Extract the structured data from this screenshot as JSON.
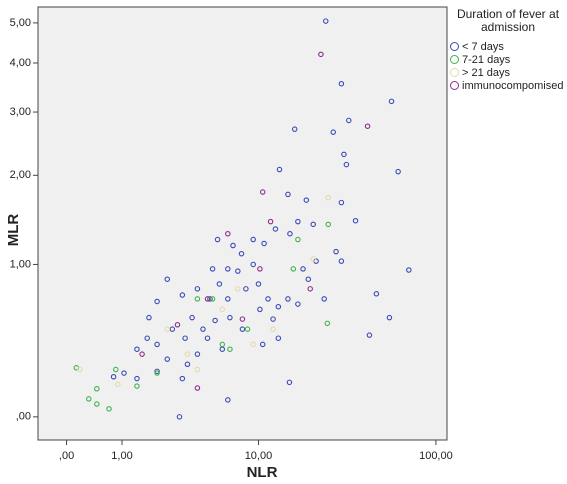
{
  "chart_data": {
    "type": "scatter",
    "xlabel": "NLR",
    "ylabel": "MLR",
    "xscale": "log1p",
    "yscale": "log1p",
    "xlim": [
      -0.3,
      115
    ],
    "ylim": [
      -0.1,
      5.45
    ],
    "xticks": [
      {
        "value": 0,
        "label": ",00"
      },
      {
        "value": 1,
        "label": "1,00"
      },
      {
        "value": 10,
        "label": "10,00"
      },
      {
        "value": 100,
        "label": "100,00"
      }
    ],
    "yticks": [
      {
        "value": 0,
        "label": ",00"
      },
      {
        "value": 1,
        "label": "1,00"
      },
      {
        "value": 2,
        "label": "2,00"
      },
      {
        "value": 3,
        "label": "3,00"
      },
      {
        "value": 4,
        "label": "4,00"
      },
      {
        "value": 5,
        "label": "5,00"
      }
    ],
    "legend_title": "Duration of fever at admission",
    "series": [
      {
        "name": "< 7 days",
        "color": "#3a4ab4",
        "x": [
          24.5,
          30,
          57,
          33,
          16.3,
          27,
          62,
          13.3,
          31,
          32,
          19,
          14.9,
          30,
          36,
          28,
          30,
          71,
          47,
          55.5,
          43,
          15.2,
          6.5,
          3.1,
          1.05,
          1.41,
          1.8,
          2.1,
          2.52,
          3.25,
          4.13,
          5,
          5.75,
          6.5,
          7.5,
          8.4,
          9.3,
          10,
          11.4,
          13.1,
          14.9,
          17,
          10.8,
          12.6,
          15.3,
          17,
          20.8,
          7.9,
          6.5,
          5.2,
          3.8,
          2.75,
          3.4,
          4.5,
          5.4,
          6.7,
          8.0,
          2.1,
          1.74,
          2.52,
          3.25,
          4.13,
          4.82,
          6.0,
          10.6,
          13.1,
          12.2,
          19.5,
          21.6,
          24,
          18.2,
          9.3,
          7,
          5.6,
          10.2,
          1.41,
          0.8,
          2.1,
          3.53
        ],
        "values": [
          5.05,
          3.55,
          3.2,
          2.85,
          2.7,
          2.65,
          2.05,
          2.08,
          2.3,
          2.15,
          1.68,
          1.75,
          1.65,
          1.44,
          1.12,
          1.03,
          0.95,
          0.75,
          0.57,
          0.45,
          0.17,
          0.08,
          0,
          0.22,
          0.36,
          0.57,
          0.69,
          0.87,
          0.74,
          0.79,
          0.71,
          0.83,
          0.71,
          0.94,
          0.79,
          1.0,
          0.83,
          0.71,
          0.65,
          0.71,
          0.67,
          1.2,
          1.35,
          1.3,
          1.43,
          1.4,
          1.1,
          0.96,
          0.96,
          0.57,
          0.49,
          0.43,
          0.49,
          0.55,
          0.57,
          0.49,
          0.39,
          0.43,
          0.3,
          0.19,
          0.33,
          0.43,
          0.36,
          0.39,
          0.43,
          0.56,
          0.87,
          1.03,
          0.71,
          0.96,
          1.24,
          1.18,
          1.24,
          0.63,
          0.19,
          0.2,
          0.23,
          0.27
        ]
      },
      {
        "name": "7-21 days",
        "color": "#3fb24a",
        "x": [
          0.13,
          0.32,
          0.46,
          0.7,
          0.46,
          1.41,
          0.85,
          4.13,
          8.6,
          17,
          25,
          25.3,
          6,
          2.1,
          6.7,
          16,
          5.2
        ],
        "values": [
          0.25,
          0.085,
          0.06,
          0.037,
          0.136,
          0.15,
          0.24,
          0.71,
          0.49,
          1.24,
          0.53,
          1.4,
          0.39,
          0.22,
          0.36,
          0.96,
          0.71
        ]
      },
      {
        "name": "> 21 days",
        "color": "#e6d9a8",
        "x": [
          0.18,
          0.9,
          2.52,
          4.13,
          6,
          20.8,
          12.2,
          9.3,
          3.53,
          25.3,
          7.5
        ],
        "values": [
          0.24,
          0.16,
          0.49,
          0.24,
          0.63,
          1.05,
          0.49,
          0.39,
          0.33,
          1.71,
          0.79
        ]
      },
      {
        "name": "immunocompomised",
        "color": "#8c2c8c",
        "x": [
          23,
          42,
          10.6,
          11.8,
          6.5,
          4.82,
          8,
          4.13,
          1.57,
          3,
          20,
          10.2
        ],
        "values": [
          4.2,
          2.75,
          1.78,
          1.43,
          1.3,
          0.71,
          0.56,
          0.14,
          0.33,
          0.52,
          0.79,
          0.96
        ]
      }
    ]
  }
}
